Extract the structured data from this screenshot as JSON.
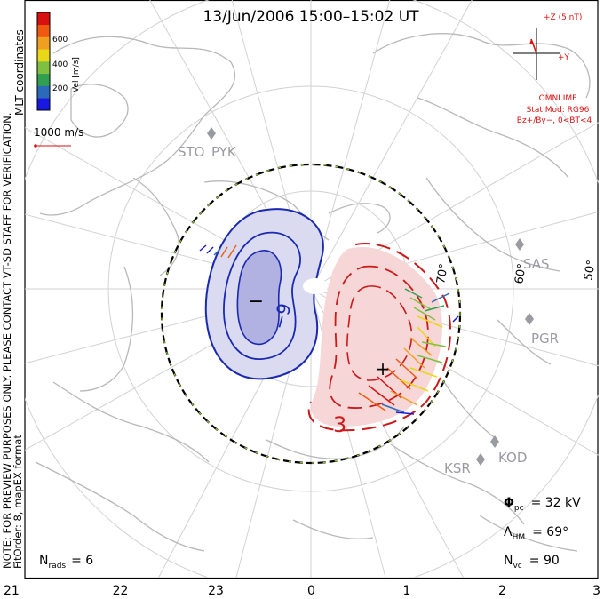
{
  "title": "13/Jun/2006  15:00–15:02 UT",
  "mlt_labels": [
    "21",
    "22",
    "23",
    "0",
    "1",
    "2",
    "3"
  ],
  "coordinates_label": "MLT coordinates",
  "colorbar": {
    "label": "Vel [m/s]",
    "ticks": [
      "600",
      "400",
      "200"
    ],
    "colors": [
      "#d81010",
      "#f05a10",
      "#f0a020",
      "#e8d818",
      "#80c040",
      "#30a050",
      "#2a6ab8",
      "#1818e0"
    ]
  },
  "reference_vector": "1000 m/s",
  "imf": {
    "z_label": "+Z (5 nT)",
    "y_label": "+Y",
    "source": "OMNI IMF",
    "model": "Stat Mod: RG96",
    "condition": "Bz+/By−, 0<BT<4"
  },
  "stations": [
    "STO",
    "PYK",
    "SAS",
    "PGR",
    "KOD",
    "KSR"
  ],
  "latitude_labels": [
    "70°",
    "60°",
    "50°"
  ],
  "contour_labels": [
    "−9",
    "3"
  ],
  "extrema": {
    "min_symbol": "−",
    "max_symbol": "+"
  },
  "notes": {
    "preview": "NOTE: FOR PREVIEW PURPOSES ONLY. PLEASE CONTACT VT-SD STAFF FOR VERIFICATION.",
    "fit": "FitOrder: 8, mapEX format"
  },
  "stats": {
    "nrads_label": "N",
    "nrads_sub": "rads",
    "nrads_value": "= 6",
    "phi_label": "Φ",
    "phi_sub": "pc",
    "phi_value": "= 32 kV",
    "lambda_label": "Λ",
    "lambda_sub": "HM",
    "lambda_value": "= 69°",
    "nvc_label": "N",
    "nvc_sub": "vc",
    "nvc_value": "= 90"
  },
  "colors": {
    "negative_cell": "#1a2ab0",
    "positive_cell": "#cc1a1a",
    "boundary_green": "#9ad040",
    "coastline": "#b8b8b8"
  }
}
